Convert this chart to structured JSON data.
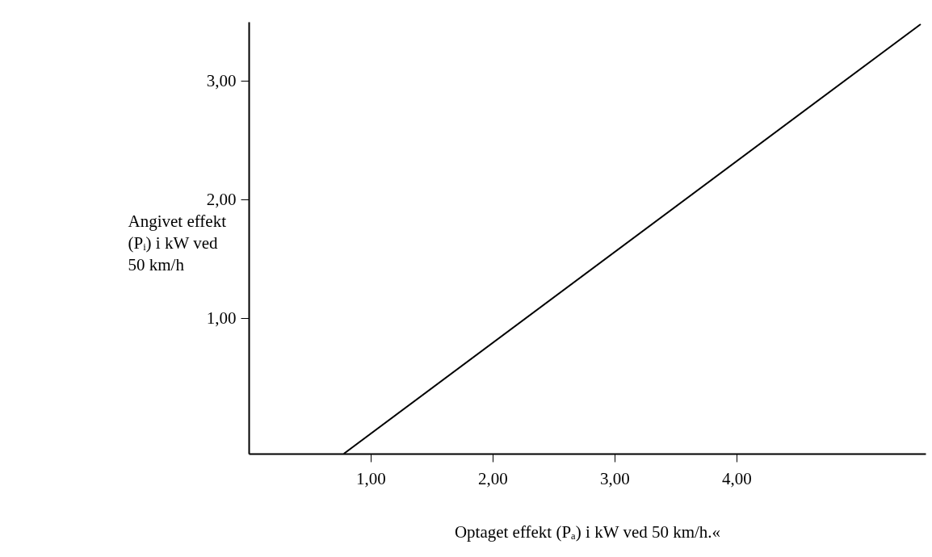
{
  "chart_data": {
    "type": "line",
    "xlabel": "Optaget effekt (Pₐ) i kW ved 50  km/h.«",
    "ylabel": "Angivet effekt\n(Pᵢ) i kW ved\n50  km/h",
    "x": [
      0.78,
      5.51
    ],
    "series": [
      {
        "color": "#000000",
        "values": [
          -0.14,
          3.48
        ]
      }
    ],
    "xlim": [
      0,
      5.55
    ],
    "ylim": [
      -0.14,
      3.5
    ],
    "xticks": [
      {
        "value": 1,
        "label": "1,00"
      },
      {
        "value": 2,
        "label": "2,00"
      },
      {
        "value": 3,
        "label": "3,00"
      },
      {
        "value": 4,
        "label": "4,00"
      }
    ],
    "yticks": [
      {
        "value": 1,
        "label": "1,00"
      },
      {
        "value": 2,
        "label": "2,00"
      },
      {
        "value": 3,
        "label": "3,00"
      }
    ],
    "grid": false,
    "marker": "none",
    "line_style": "solid"
  }
}
